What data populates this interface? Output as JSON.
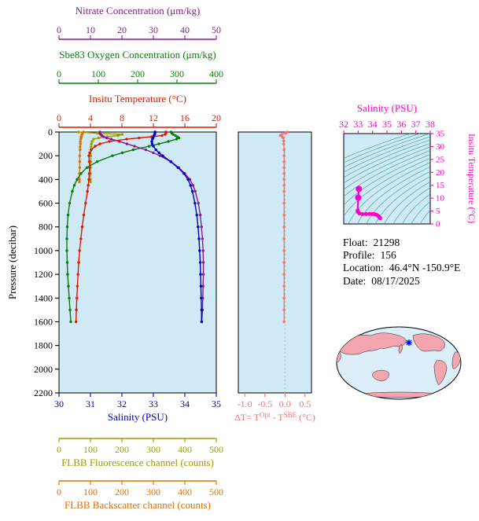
{
  "info": {
    "rows": [
      {
        "label": "Float:",
        "value": "21298"
      },
      {
        "label": "Profile:",
        "value": "156"
      },
      {
        "label": "Location:",
        "value": "46.4°N  -150.9°E"
      },
      {
        "label": "Date:",
        "value": "08/17/2025"
      }
    ]
  },
  "colors": {
    "nitrate": "#8b1a8b",
    "oxygen": "#0a7d0a",
    "temperature": "#e01800",
    "salinity": "#0000cd",
    "fluorescence": "#9c9c00",
    "backscatter": "#e07000",
    "delta_t": "#f4736e",
    "ts_magenta": "#ff00c8",
    "plot_background": "#cfe9f5",
    "contour_teal": "#2f9e9e",
    "map_land": "#f4a6b0",
    "map_ocean": "#dceef7",
    "marker_blue": "#0000ff"
  },
  "chart_data": [
    {
      "type": "line",
      "name": "multi-parameter-profile-plot",
      "ylabel": "Pressure (decibar)",
      "ylim": [
        0,
        2200
      ],
      "yticks": [
        0,
        200,
        400,
        600,
        800,
        1000,
        1200,
        1400,
        1600,
        1800,
        2000,
        2200
      ],
      "plot_bg": "#cfe9f5",
      "axes": [
        {
          "id": "nitrate",
          "label": "Nitrate Concentration (μm/kg)",
          "range": [
            0,
            50
          ],
          "ticks": [
            0,
            10,
            20,
            30,
            40,
            50
          ],
          "color": "#8b1a8b",
          "position": "top-outer"
        },
        {
          "id": "oxygen",
          "label": "Sbe83 Oxygen Concentration (μm/kg)",
          "range": [
            0,
            400
          ],
          "ticks": [
            0,
            100,
            200,
            300,
            400
          ],
          "color": "#0a7d0a",
          "position": "top-middle"
        },
        {
          "id": "temperature",
          "label": "Insitu Temperature (°C)",
          "range": [
            0,
            20
          ],
          "ticks": [
            0,
            4,
            8,
            12,
            16,
            20
          ],
          "color": "#e01800",
          "position": "top-inner"
        },
        {
          "id": "salinity",
          "label": "Salinity (PSU)",
          "range": [
            30,
            35
          ],
          "ticks": [
            30,
            31,
            32,
            33,
            34,
            35
          ],
          "color": "#0000cd",
          "position": "bottom-inner"
        },
        {
          "id": "fluorescence",
          "label": "FLBB Fluorescence channel (counts)",
          "range": [
            0,
            500
          ],
          "ticks": [
            0,
            100,
            200,
            300,
            400,
            500
          ],
          "color": "#9c9c00",
          "position": "bottom-middle"
        },
        {
          "id": "backscatter",
          "label": "FLBB Backscatter channel (counts)",
          "range": [
            0,
            500
          ],
          "ticks": [
            0,
            100,
            200,
            300,
            400,
            500
          ],
          "color": "#e07000",
          "position": "bottom-outer"
        }
      ],
      "series": [
        {
          "name": "fluorescence",
          "axis": "fluorescence",
          "color": "#9c9c00",
          "pressure": [
            0,
            10,
            20,
            30,
            40,
            50,
            60,
            80,
            100,
            125,
            150,
            200,
            250,
            300,
            350,
            400,
            420
          ],
          "values": [
            62,
            122,
            201,
            188,
            154,
            126,
            110,
            105,
            103,
            102,
            102,
            101,
            101,
            100,
            100,
            100,
            100
          ]
        },
        {
          "name": "backscatter",
          "axis": "backscatter",
          "color": "#e07000",
          "pressure": [
            0,
            10,
            20,
            30,
            40,
            50,
            60,
            80,
            100,
            125,
            150,
            200,
            250,
            300,
            350,
            400,
            420
          ],
          "values": [
            78,
            75,
            73,
            72,
            71,
            70,
            69,
            68,
            68,
            67,
            67,
            66,
            66,
            66,
            65,
            65,
            65
          ]
        },
        {
          "name": "oxygen",
          "axis": "oxygen",
          "color": "#0a7d0a",
          "pressure": [
            0,
            10,
            20,
            30,
            40,
            50,
            60,
            80,
            100,
            120,
            150,
            175,
            200,
            250,
            300,
            350,
            400,
            450,
            500,
            600,
            700,
            800,
            900,
            1000,
            1100,
            1200,
            1300,
            1400,
            1500,
            1600
          ],
          "values": [
            285,
            287,
            290,
            296,
            301,
            305,
            299,
            278,
            254,
            229,
            189,
            161,
            136,
            97,
            71,
            56,
            46,
            39,
            34,
            27,
            23,
            21,
            20,
            20,
            21,
            22,
            24,
            26,
            28,
            30
          ]
        },
        {
          "name": "nitrate",
          "axis": "nitrate",
          "color": "#8b1a8b",
          "pressure": [
            0,
            10,
            20,
            30,
            40,
            50,
            60,
            80,
            100,
            120,
            150,
            175,
            200,
            250,
            300,
            350,
            400,
            450,
            500,
            600,
            700,
            800,
            900,
            1000,
            1100,
            1200,
            1300,
            1400,
            1500,
            1600
          ],
          "values": [
            13,
            13,
            13.2,
            13.6,
            14.2,
            15.1,
            16.6,
            19.2,
            21.6,
            24,
            27.6,
            30,
            32.1,
            35.6,
            38.1,
            40,
            41.6,
            42.6,
            43.3,
            44.3,
            44.9,
            45.3,
            45.6,
            45.8,
            45.9,
            45.9,
            45.8,
            45.7,
            45.6,
            45.4
          ]
        },
        {
          "name": "temperature",
          "axis": "temperature",
          "color": "#e01800",
          "pressure": [
            0,
            10,
            20,
            30,
            40,
            50,
            60,
            80,
            100,
            120,
            150,
            175,
            200,
            250,
            300,
            350,
            400,
            450,
            500,
            600,
            700,
            800,
            900,
            1000,
            1100,
            1200,
            1300,
            1400,
            1500,
            1600
          ],
          "values": [
            13.6,
            13.6,
            13.5,
            13.1,
            11.8,
            10.2,
            8.6,
            6.4,
            5.2,
            4.6,
            4.1,
            3.9,
            3.8,
            3.85,
            3.9,
            3.85,
            3.8,
            3.72,
            3.62,
            3.38,
            3.15,
            2.95,
            2.78,
            2.62,
            2.5,
            2.42,
            2.34,
            2.27,
            2.21,
            2.16
          ]
        },
        {
          "name": "salinity",
          "axis": "salinity",
          "color": "#0000cd",
          "pressure": [
            0,
            10,
            20,
            30,
            40,
            50,
            60,
            80,
            100,
            120,
            150,
            175,
            200,
            250,
            300,
            350,
            400,
            450,
            500,
            600,
            700,
            800,
            900,
            1000,
            1100,
            1200,
            1300,
            1400,
            1500,
            1600
          ],
          "values": [
            33.05,
            33.05,
            33.04,
            33.02,
            33.0,
            32.99,
            32.97,
            32.95,
            32.96,
            33.0,
            33.08,
            33.18,
            33.3,
            33.55,
            33.78,
            33.97,
            34.1,
            34.18,
            34.24,
            34.32,
            34.38,
            34.42,
            34.45,
            34.47,
            34.49,
            34.5,
            34.51,
            34.52,
            34.53,
            34.53
          ]
        }
      ]
    },
    {
      "type": "line",
      "name": "delta-temperature-plot",
      "title_parts": [
        {
          "text": "ΔT= T",
          "sup": false
        },
        {
          "text": "Opt",
          "sup": true
        },
        {
          "text": " - T",
          "sup": false
        },
        {
          "text": "SBE",
          "sup": true
        },
        {
          "text": " (°C)",
          "sup": false
        }
      ],
      "xlim": [
        -1.0,
        0.5
      ],
      "xtick_labels": [
        "-1.0",
        "-0.5",
        "0.0",
        "0.5"
      ],
      "xtick_values": [
        -1.0,
        -0.5,
        0.0,
        0.5
      ],
      "ylim": [
        0,
        2200
      ],
      "color": "#f4736e",
      "plot_bg": "#cfe9f5",
      "pressure": [
        0,
        10,
        20,
        30,
        40,
        50,
        75,
        100,
        150,
        200,
        250,
        300,
        350,
        400,
        450,
        500,
        600,
        700,
        800,
        900,
        1000,
        1100,
        1200,
        1300,
        1400,
        1500,
        1600
      ],
      "values": [
        0.06,
        0.02,
        -0.08,
        -0.12,
        -0.07,
        -0.04,
        -0.03,
        -0.03,
        -0.02,
        -0.02,
        -0.02,
        -0.02,
        -0.02,
        -0.02,
        -0.02,
        -0.02,
        -0.02,
        -0.02,
        -0.02,
        -0.02,
        -0.02,
        -0.02,
        -0.02,
        -0.02,
        -0.02,
        -0.02,
        -0.02
      ]
    },
    {
      "type": "line",
      "name": "ts-diagram",
      "title": "Salinity (PSU)",
      "xlim": [
        32,
        38
      ],
      "xticks": [
        32,
        33,
        34,
        35,
        36,
        37,
        38
      ],
      "ylabel": "Insitu Temperature (°C)",
      "ylim": [
        0,
        35
      ],
      "yticks": [
        0,
        5,
        10,
        15,
        20,
        25,
        30,
        35
      ],
      "color": "#ff00c8",
      "plot_bg": "#cfe9f5",
      "contours": {
        "color": "#2f9e9e",
        "min": 21,
        "max": 30,
        "step": 0.5
      },
      "salinity": [
        33.05,
        33.0,
        32.97,
        32.96,
        33.0,
        33.08,
        33.3,
        33.55,
        33.78,
        33.97,
        34.1,
        34.24,
        34.32,
        34.42,
        34.47,
        34.5,
        34.52,
        34.53
      ],
      "temperature": [
        13.6,
        10.2,
        5.2,
        5.0,
        4.6,
        4.1,
        3.8,
        3.85,
        3.9,
        3.85,
        3.8,
        3.62,
        3.38,
        2.95,
        2.62,
        2.42,
        2.27,
        2.16
      ]
    }
  ]
}
